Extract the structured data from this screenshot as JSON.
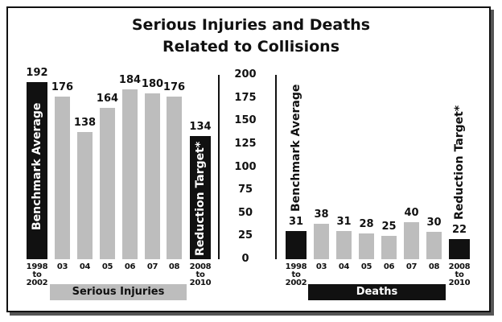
{
  "chart_data": [
    {
      "type": "bar",
      "title": "Serious Injuries and Deaths Related to Collisions",
      "x_label": "Serious Injuries",
      "categories": [
        "1998 to 2002",
        "03",
        "04",
        "05",
        "06",
        "07",
        "08",
        "2008 to 2010"
      ],
      "values": [
        192,
        176,
        138,
        164,
        184,
        180,
        176,
        134
      ],
      "colors": [
        "#111111",
        "#bdbdbd",
        "#bdbdbd",
        "#bdbdbd",
        "#bdbdbd",
        "#bdbdbd",
        "#bdbdbd",
        "#111111"
      ],
      "annotations": [
        "Benchmark Average",
        "Reduction Target*"
      ],
      "ylim": [
        0,
        200
      ],
      "yticks": [
        0,
        25,
        50,
        75,
        100,
        125,
        150,
        175,
        200
      ]
    },
    {
      "type": "bar",
      "x_label": "Deaths",
      "categories": [
        "1998 to 2002",
        "03",
        "04",
        "05",
        "06",
        "07",
        "08",
        "2008 to 2010"
      ],
      "values": [
        31,
        38,
        31,
        28,
        25,
        40,
        30,
        22
      ],
      "colors": [
        "#111111",
        "#bdbdbd",
        "#bdbdbd",
        "#bdbdbd",
        "#bdbdbd",
        "#bdbdbd",
        "#bdbdbd",
        "#111111"
      ],
      "annotations": [
        "Benchmark Average",
        "Reduction Target*"
      ],
      "ylim": [
        0,
        200
      ]
    }
  ]
}
